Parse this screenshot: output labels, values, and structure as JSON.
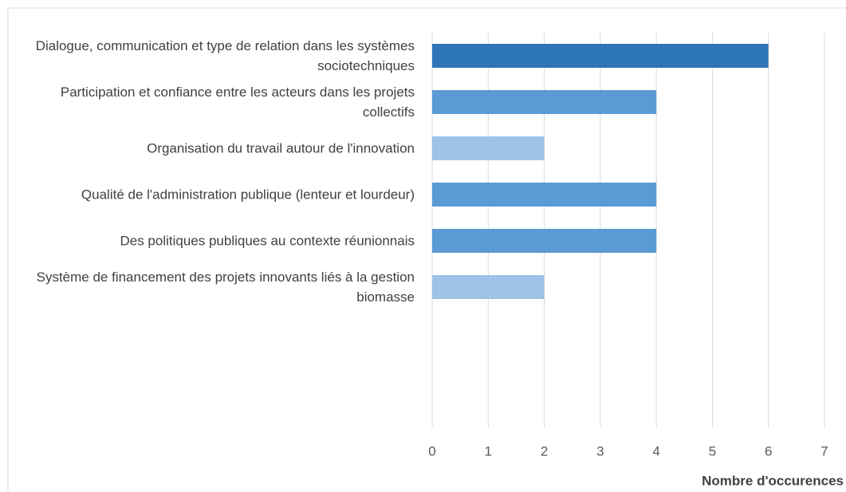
{
  "chart_data": {
    "type": "bar",
    "orientation": "horizontal",
    "categories": [
      "Dialogue, communication et type de relation dans les systèmes sociotechniques",
      "Participation et confiance entre les acteurs dans les projets collectifs",
      "Organisation du travail autour de l'innovation",
      "Qualité de l'administration publique (lenteur et lourdeur)",
      "Des politiques publiques au contexte réunionnais",
      "Système de financement des projets innovants liés à la gestion biomasse"
    ],
    "values": [
      6,
      4,
      2,
      4,
      4,
      2
    ],
    "colors": [
      "#2e75b6",
      "#5b9bd5",
      "#9dc3e6",
      "#5b9bd5",
      "#5b9bd5",
      "#9dc3e6"
    ],
    "xlabel": "Nombre d'occurences",
    "xlim": [
      0,
      7
    ],
    "xticks": [
      0,
      1,
      2,
      3,
      4,
      5,
      6,
      7
    ],
    "grid": true
  }
}
